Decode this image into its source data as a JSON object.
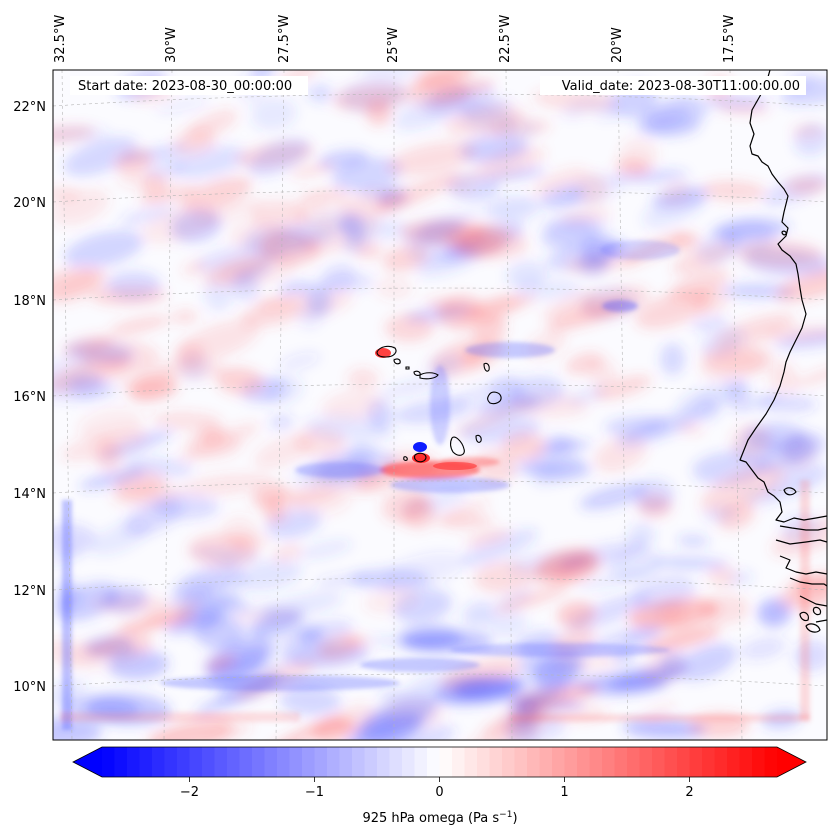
{
  "header": {
    "start_date": "Start date: 2023-08-30_00:00:00",
    "valid_date": "Valid_date: 2023-08-30T11:00:00.00"
  },
  "axes": {
    "lon_labels": [
      "32.5°W",
      "30°W",
      "27.5°W",
      "25°W",
      "22.5°W",
      "20°W",
      "17.5°W"
    ],
    "lat_labels": [
      "22°N",
      "20°N",
      "18°N",
      "16°N",
      "14°N",
      "12°N",
      "10°N"
    ],
    "gridlines": true
  },
  "colorbar": {
    "tick_labels": [
      "−2",
      "−1",
      "0",
      "1",
      "2"
    ],
    "label_main": "925 hPa omega (Pa s",
    "label_sup": "−1",
    "label_close": ")",
    "range": [
      -2.7,
      2.7
    ],
    "extend": "both",
    "colormap": "bwr",
    "color_low": "#0000ff",
    "color_mid": "#ffffff",
    "color_high": "#ff0000"
  },
  "map": {
    "projection": "Lambert conformal",
    "field": "925 hPa omega",
    "coastline_color": "#000000"
  }
}
